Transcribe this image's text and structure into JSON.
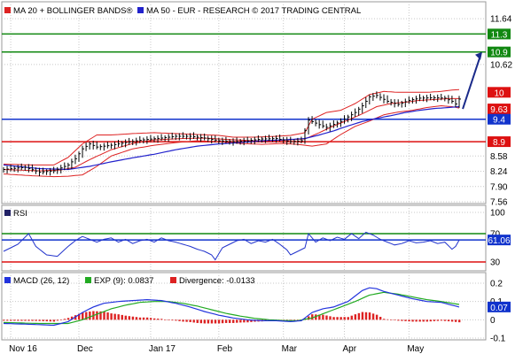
{
  "colors": {
    "price_line": "#000000",
    "bollinger": "#dd2222",
    "ma50": "#2222cc",
    "level_green": "#118811",
    "level_blue": "#1133cc",
    "level_red": "#dd1111",
    "arrow": "#1a2a8a",
    "rsi_line": "#2233cc",
    "macd_line": "#2233dd",
    "signal_line": "#22aa22",
    "divergence": "#dd2222",
    "grid": "#c8c8c8"
  },
  "chart_data": [
    {
      "type": "line",
      "panel": "price",
      "legend": [
        {
          "icon": "red-square-icon",
          "label": "MA 20 + BOLLINGER BANDS®"
        },
        {
          "icon": "blue-square-icon",
          "label": "MA 50 - EUR - RESEARCH © 2017 TRADING CENTRAL"
        }
      ],
      "ylim": [
        7.56,
        11.9
      ],
      "y_ticks": [
        "11.64",
        "10.62",
        "8.58",
        "8.24",
        "7.90",
        "7.56"
      ],
      "x_months": [
        "Nov 16",
        "Dec",
        "Jan 17",
        "Feb",
        "Mar",
        "Apr",
        "May"
      ],
      "x_month_index": [
        2,
        21,
        41,
        60,
        78,
        95,
        113
      ],
      "horizontal_levels": [
        {
          "label": "11.3",
          "value": 11.3,
          "color": "green"
        },
        {
          "label": "10.9",
          "value": 10.9,
          "color": "green"
        },
        {
          "label": "10",
          "value": 10.0,
          "color": "red",
          "line": false
        },
        {
          "label": "9.63",
          "value": 9.63,
          "color": "red",
          "line": false
        },
        {
          "label": "9.4",
          "value": 9.4,
          "color": "blue"
        },
        {
          "label": "8.9",
          "value": 8.9,
          "color": "red"
        }
      ],
      "projection": {
        "from_index": 128,
        "from_value": 9.63,
        "to_index": 135,
        "to_value": 10.9
      },
      "n_bars": 128,
      "close_anchors": [
        [
          0,
          8.28
        ],
        [
          6,
          8.33
        ],
        [
          10,
          8.22
        ],
        [
          14,
          8.25
        ],
        [
          18,
          8.38
        ],
        [
          20,
          8.52
        ],
        [
          22,
          8.74
        ],
        [
          24,
          8.85
        ],
        [
          26,
          8.78
        ],
        [
          30,
          8.82
        ],
        [
          34,
          8.88
        ],
        [
          38,
          8.93
        ],
        [
          40,
          8.95
        ],
        [
          44,
          8.98
        ],
        [
          48,
          9.02
        ],
        [
          52,
          9.02
        ],
        [
          56,
          8.98
        ],
        [
          60,
          8.92
        ],
        [
          64,
          8.9
        ],
        [
          68,
          8.92
        ],
        [
          72,
          8.96
        ],
        [
          76,
          8.97
        ],
        [
          80,
          8.9
        ],
        [
          83,
          8.92
        ],
        [
          85,
          9.38
        ],
        [
          88,
          9.28
        ],
        [
          90,
          9.22
        ],
        [
          94,
          9.35
        ],
        [
          98,
          9.55
        ],
        [
          100,
          9.7
        ],
        [
          102,
          9.9
        ],
        [
          104,
          9.93
        ],
        [
          107,
          9.8
        ],
        [
          110,
          9.73
        ],
        [
          113,
          9.82
        ],
        [
          116,
          9.87
        ],
        [
          120,
          9.88
        ],
        [
          123,
          9.87
        ],
        [
          125,
          9.8
        ],
        [
          126,
          9.74
        ],
        [
          127,
          9.85
        ]
      ],
      "ma20_anchors": [
        [
          0,
          8.28
        ],
        [
          10,
          8.25
        ],
        [
          16,
          8.27
        ],
        [
          20,
          8.33
        ],
        [
          24,
          8.5
        ],
        [
          30,
          8.72
        ],
        [
          36,
          8.86
        ],
        [
          42,
          8.94
        ],
        [
          50,
          8.97
        ],
        [
          56,
          8.98
        ],
        [
          62,
          8.95
        ],
        [
          70,
          8.92
        ],
        [
          78,
          8.93
        ],
        [
          84,
          8.96
        ],
        [
          88,
          9.1
        ],
        [
          92,
          9.25
        ],
        [
          96,
          9.38
        ],
        [
          100,
          9.52
        ],
        [
          104,
          9.68
        ],
        [
          108,
          9.75
        ],
        [
          112,
          9.78
        ],
        [
          116,
          9.82
        ],
        [
          120,
          9.84
        ],
        [
          124,
          9.86
        ],
        [
          127,
          9.86
        ]
      ],
      "band_upper_anchors": [
        [
          0,
          8.4
        ],
        [
          8,
          8.38
        ],
        [
          14,
          8.38
        ],
        [
          18,
          8.55
        ],
        [
          22,
          8.85
        ],
        [
          26,
          9.05
        ],
        [
          30,
          9.05
        ],
        [
          36,
          9.08
        ],
        [
          42,
          9.1
        ],
        [
          48,
          9.08
        ],
        [
          54,
          9.06
        ],
        [
          60,
          9.04
        ],
        [
          64,
          9.0
        ],
        [
          70,
          9.0
        ],
        [
          76,
          9.02
        ],
        [
          80,
          9.04
        ],
        [
          84,
          9.1
        ],
        [
          86,
          9.4
        ],
        [
          90,
          9.55
        ],
        [
          94,
          9.6
        ],
        [
          98,
          9.75
        ],
        [
          102,
          9.95
        ],
        [
          106,
          10.02
        ],
        [
          110,
          10.0
        ],
        [
          114,
          10.0
        ],
        [
          118,
          10.0
        ],
        [
          122,
          10.02
        ],
        [
          125,
          10.05
        ],
        [
          127,
          10.06
        ]
      ],
      "band_lower_anchors": [
        [
          0,
          8.18
        ],
        [
          8,
          8.14
        ],
        [
          14,
          8.12
        ],
        [
          18,
          8.13
        ],
        [
          22,
          8.16
        ],
        [
          26,
          8.35
        ],
        [
          30,
          8.58
        ],
        [
          36,
          8.74
        ],
        [
          42,
          8.82
        ],
        [
          48,
          8.88
        ],
        [
          54,
          8.92
        ],
        [
          60,
          8.9
        ],
        [
          66,
          8.86
        ],
        [
          72,
          8.84
        ],
        [
          78,
          8.86
        ],
        [
          82,
          8.84
        ],
        [
          86,
          8.8
        ],
        [
          90,
          8.85
        ],
        [
          94,
          9.06
        ],
        [
          98,
          9.24
        ],
        [
          102,
          9.36
        ],
        [
          106,
          9.5
        ],
        [
          110,
          9.56
        ],
        [
          114,
          9.6
        ],
        [
          118,
          9.66
        ],
        [
          122,
          9.7
        ],
        [
          125,
          9.68
        ],
        [
          127,
          9.65
        ]
      ],
      "ma50_anchors": [
        [
          0,
          8.38
        ],
        [
          10,
          8.3
        ],
        [
          18,
          8.28
        ],
        [
          24,
          8.35
        ],
        [
          30,
          8.45
        ],
        [
          36,
          8.54
        ],
        [
          42,
          8.62
        ],
        [
          48,
          8.72
        ],
        [
          54,
          8.8
        ],
        [
          60,
          8.85
        ],
        [
          66,
          8.88
        ],
        [
          72,
          8.92
        ],
        [
          78,
          8.94
        ],
        [
          84,
          8.97
        ],
        [
          88,
          9.05
        ],
        [
          92,
          9.14
        ],
        [
          96,
          9.25
        ],
        [
          100,
          9.35
        ],
        [
          104,
          9.42
        ],
        [
          108,
          9.48
        ],
        [
          112,
          9.55
        ],
        [
          116,
          9.6
        ],
        [
          120,
          9.64
        ],
        [
          124,
          9.66
        ],
        [
          127,
          9.68
        ]
      ]
    },
    {
      "type": "line",
      "panel": "rsi",
      "legend": [
        {
          "icon": "navy-square-icon",
          "label": "RSI"
        }
      ],
      "ylim": [
        20,
        105
      ],
      "y_ticks": [
        "100",
        "70",
        "30"
      ],
      "levels": [
        {
          "label": "70",
          "value": 70,
          "color": "green"
        },
        {
          "label": "61.06",
          "value": 61.06,
          "color": "blue",
          "badge": true
        },
        {
          "label": "30",
          "value": 30,
          "color": "red"
        }
      ],
      "rsi_anchors": [
        [
          0,
          45
        ],
        [
          4,
          55
        ],
        [
          7,
          70
        ],
        [
          9,
          52
        ],
        [
          12,
          40
        ],
        [
          15,
          38
        ],
        [
          18,
          52
        ],
        [
          20,
          60
        ],
        [
          22,
          66
        ],
        [
          24,
          62
        ],
        [
          26,
          58
        ],
        [
          28,
          62
        ],
        [
          30,
          64
        ],
        [
          32,
          58
        ],
        [
          34,
          62
        ],
        [
          36,
          56
        ],
        [
          38,
          60
        ],
        [
          40,
          62
        ],
        [
          42,
          58
        ],
        [
          44,
          64
        ],
        [
          46,
          60
        ],
        [
          48,
          58
        ],
        [
          50,
          55
        ],
        [
          52,
          52
        ],
        [
          54,
          48
        ],
        [
          56,
          45
        ],
        [
          58,
          40
        ],
        [
          59,
          33
        ],
        [
          61,
          50
        ],
        [
          63,
          55
        ],
        [
          65,
          60
        ],
        [
          67,
          62
        ],
        [
          69,
          56
        ],
        [
          71,
          60
        ],
        [
          73,
          58
        ],
        [
          75,
          62
        ],
        [
          77,
          55
        ],
        [
          79,
          47
        ],
        [
          80,
          40
        ],
        [
          82,
          45
        ],
        [
          84,
          50
        ],
        [
          85,
          70
        ],
        [
          87,
          58
        ],
        [
          89,
          64
        ],
        [
          91,
          60
        ],
        [
          93,
          65
        ],
        [
          95,
          62
        ],
        [
          97,
          70
        ],
        [
          99,
          63
        ],
        [
          101,
          72
        ],
        [
          103,
          68
        ],
        [
          105,
          62
        ],
        [
          107,
          58
        ],
        [
          109,
          54
        ],
        [
          111,
          56
        ],
        [
          113,
          60
        ],
        [
          115,
          57
        ],
        [
          117,
          58
        ],
        [
          119,
          60
        ],
        [
          121,
          56
        ],
        [
          123,
          58
        ],
        [
          125,
          48
        ],
        [
          126,
          52
        ],
        [
          127,
          61
        ]
      ]
    },
    {
      "type": "line",
      "panel": "macd",
      "legend": [
        {
          "icon": "blue-square-icon",
          "label": "MACD (26, 12)"
        },
        {
          "icon": "green-square-icon",
          "label": "EXP (9): 0.0837"
        },
        {
          "icon": "red-square-icon",
          "label": "Divergence: -0.0133"
        }
      ],
      "ylim": [
        -0.1,
        0.2
      ],
      "y_ticks": [
        "0.2",
        "0.1",
        "0",
        "-0.1"
      ],
      "badge": {
        "label": "0.07",
        "value": 0.07
      },
      "macd_anchors": [
        [
          0,
          -0.02
        ],
        [
          8,
          -0.025
        ],
        [
          14,
          -0.03
        ],
        [
          18,
          -0.01
        ],
        [
          22,
          0.04
        ],
        [
          25,
          0.07
        ],
        [
          28,
          0.09
        ],
        [
          32,
          0.1
        ],
        [
          36,
          0.105
        ],
        [
          40,
          0.11
        ],
        [
          44,
          0.105
        ],
        [
          48,
          0.09
        ],
        [
          52,
          0.07
        ],
        [
          56,
          0.045
        ],
        [
          60,
          0.025
        ],
        [
          64,
          0.01
        ],
        [
          68,
          0.0
        ],
        [
          72,
          -0.005
        ],
        [
          76,
          -0.005
        ],
        [
          80,
          -0.01
        ],
        [
          83,
          -0.005
        ],
        [
          86,
          0.04
        ],
        [
          89,
          0.06
        ],
        [
          92,
          0.07
        ],
        [
          96,
          0.1
        ],
        [
          98,
          0.13
        ],
        [
          100,
          0.16
        ],
        [
          102,
          0.175
        ],
        [
          104,
          0.17
        ],
        [
          106,
          0.155
        ],
        [
          110,
          0.135
        ],
        [
          114,
          0.115
        ],
        [
          118,
          0.1
        ],
        [
          122,
          0.095
        ],
        [
          125,
          0.08
        ],
        [
          127,
          0.07
        ]
      ],
      "signal_anchors": [
        [
          0,
          -0.015
        ],
        [
          10,
          -0.02
        ],
        [
          18,
          -0.02
        ],
        [
          22,
          0.0
        ],
        [
          26,
          0.03
        ],
        [
          30,
          0.06
        ],
        [
          34,
          0.08
        ],
        [
          38,
          0.095
        ],
        [
          42,
          0.1
        ],
        [
          46,
          0.1
        ],
        [
          50,
          0.09
        ],
        [
          54,
          0.075
        ],
        [
          58,
          0.055
        ],
        [
          62,
          0.035
        ],
        [
          66,
          0.02
        ],
        [
          70,
          0.008
        ],
        [
          74,
          0.0
        ],
        [
          78,
          -0.004
        ],
        [
          82,
          -0.005
        ],
        [
          86,
          0.01
        ],
        [
          90,
          0.04
        ],
        [
          94,
          0.07
        ],
        [
          98,
          0.1
        ],
        [
          102,
          0.135
        ],
        [
          106,
          0.15
        ],
        [
          110,
          0.14
        ],
        [
          114,
          0.125
        ],
        [
          118,
          0.11
        ],
        [
          122,
          0.1
        ],
        [
          125,
          0.09
        ],
        [
          127,
          0.0837
        ]
      ]
    }
  ]
}
